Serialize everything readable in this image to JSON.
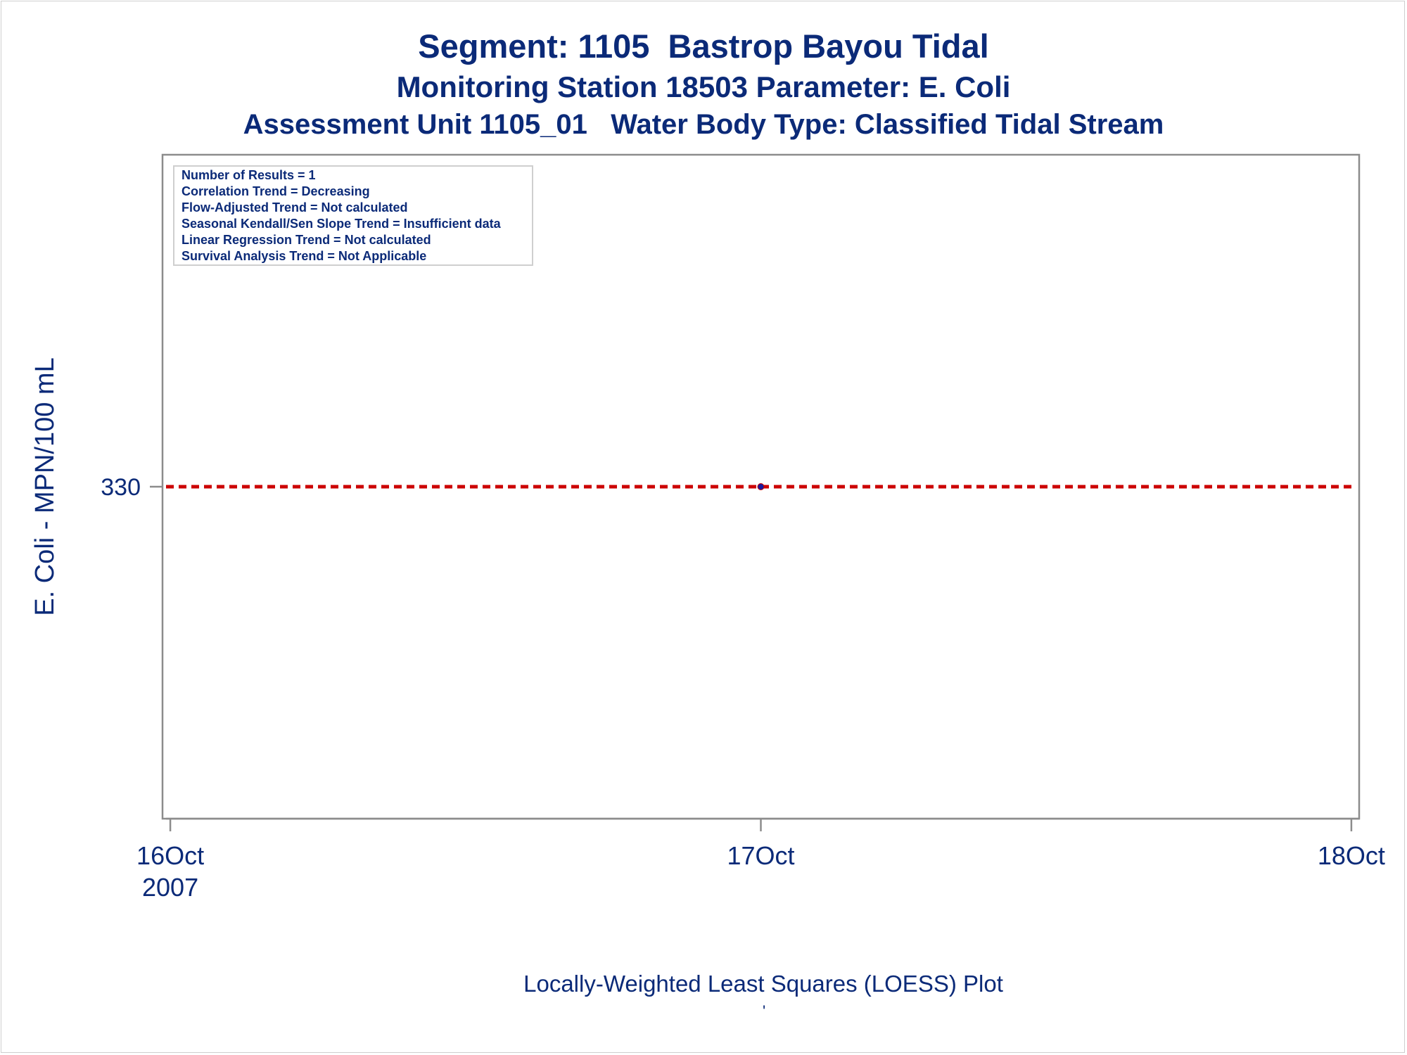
{
  "titles": {
    "line1": "Segment: 1105  Bastrop Bayou Tidal",
    "line2": "Monitoring Station 18503 Parameter: E. Coli",
    "line3": "Assessment Unit 1105_01   Water Body Type: Classified Tidal Stream"
  },
  "stats_box": [
    "Number of Results = 1",
    "Correlation Trend = Decreasing",
    "Flow-Adjusted Trend = Not calculated",
    "Seasonal Kendall/Sen Slope Trend = Insufficient data",
    "Linear Regression Trend = Not calculated",
    "Survival Analysis Trend = Not Applicable"
  ],
  "footnote": "Locally-Weighted Least Squares (LOESS) Plot",
  "footnote_mark": "'",
  "colors": {
    "text": "#0b2a78",
    "axis": "#8c8c8c",
    "reference_line": "#cc0000",
    "point": "#1a1a9c"
  },
  "chart_data": {
    "type": "scatter",
    "title": "Segment: 1105  Bastrop Bayou Tidal",
    "ylabel": "E. Coli - MPN/100 mL",
    "xlabel": "",
    "x_ticks": [
      {
        "x": "2007-10-16",
        "label": [
          "16Oct",
          "2007"
        ]
      },
      {
        "x": "2007-10-17",
        "label": [
          "17Oct"
        ]
      },
      {
        "x": "2007-10-18",
        "label": [
          "18Oct"
        ]
      }
    ],
    "y_ticks": [
      330
    ],
    "xlim": [
      "2007-10-15T23:41",
      "2007-10-18T00:19"
    ],
    "ylim": [
      200,
      460
    ],
    "series": [
      {
        "points": [
          {
            "x": "2007-10-17",
            "y": 330
          }
        ]
      }
    ],
    "reference_lines": [
      {
        "y": 330,
        "style": "dashed"
      }
    ],
    "grid": false
  }
}
